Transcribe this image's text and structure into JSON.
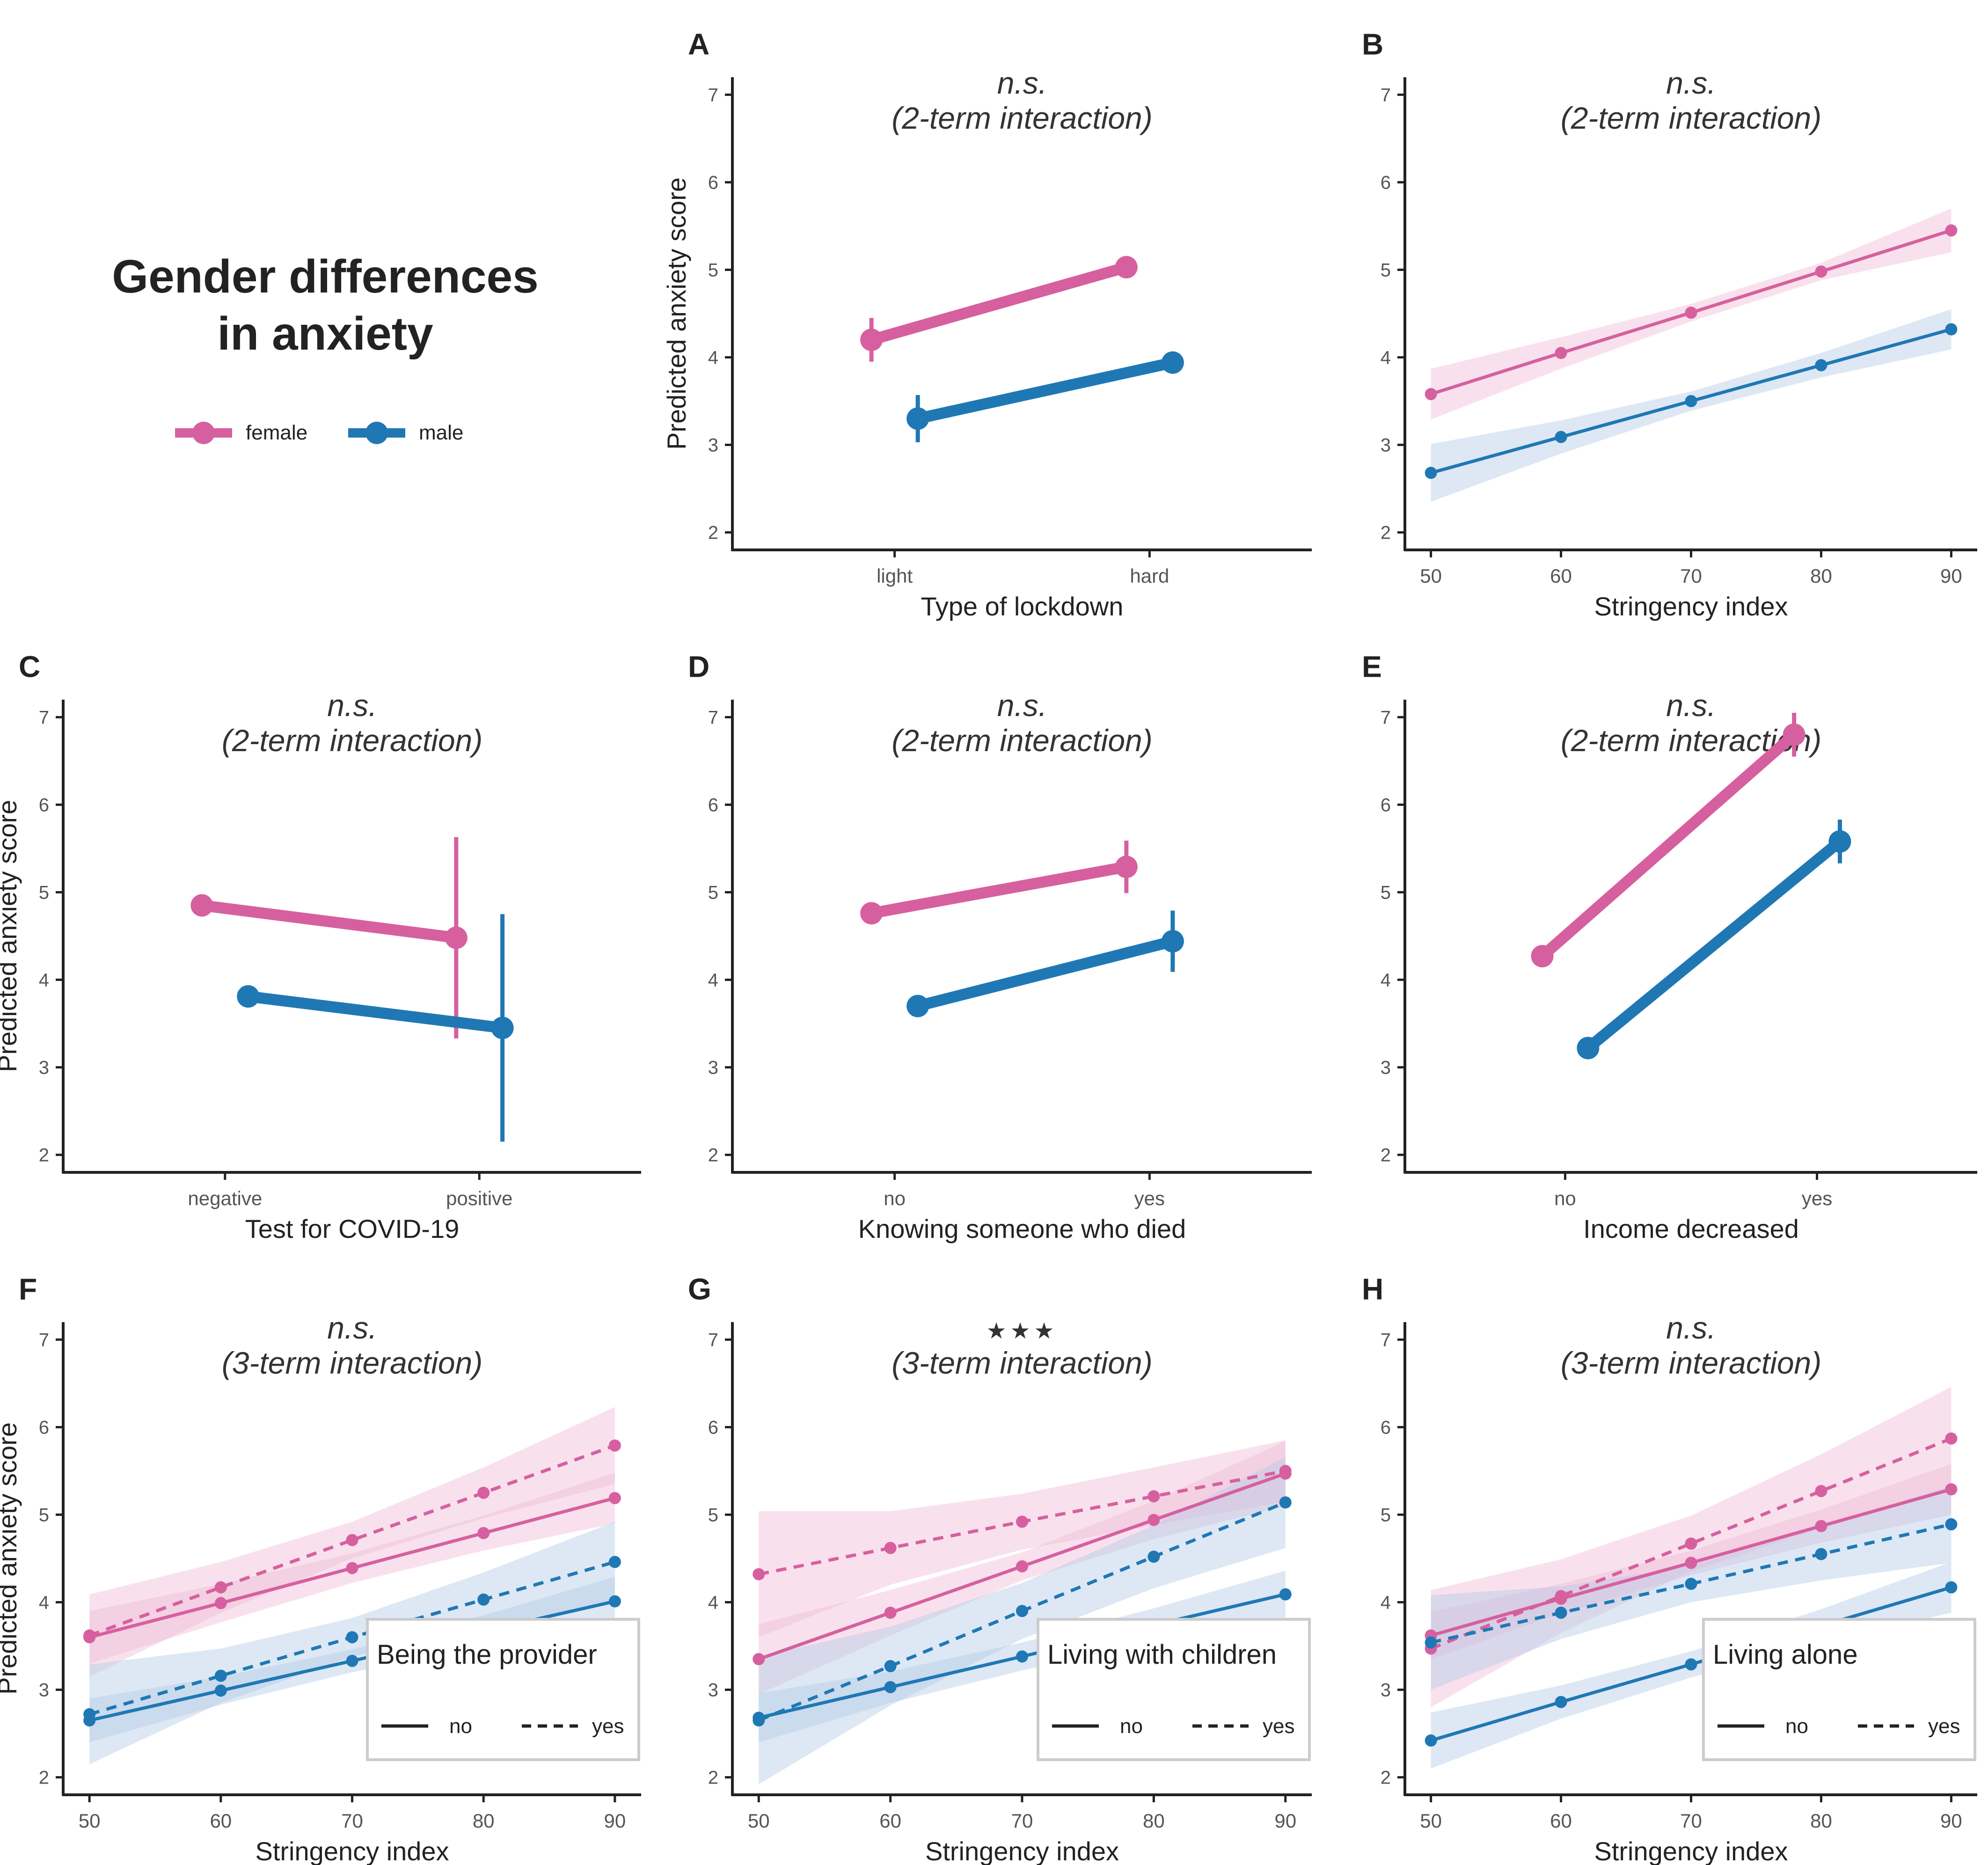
{
  "figure": {
    "title_line1": "Gender differences",
    "title_line2": "in anxiety",
    "legend": [
      {
        "label": "female",
        "color": "#d6609f"
      },
      {
        "label": "male",
        "color": "#1f78b4"
      }
    ],
    "colors": {
      "female": "#d6609f",
      "male": "#1f78b4",
      "female_band": "#f0bcd8",
      "male_band": "#b4cde6",
      "axis": "#222222",
      "tick_label": "#555555"
    }
  },
  "chart_data": [
    {
      "panel": "A",
      "type": "line",
      "subtype": "categorical-points",
      "annotation_line1": "n.s.",
      "annotation_line2": "(2-term interaction)",
      "xlabel": "Type of lockdown",
      "ylabel": "Predicted anxiety score",
      "ylim": [
        1.8,
        7.2
      ],
      "yticks": [
        2,
        3,
        4,
        5,
        6,
        7
      ],
      "categories": [
        "light",
        "hard"
      ],
      "series": [
        {
          "name": "female",
          "values": [
            4.2,
            5.03
          ],
          "ci_low": [
            3.95,
            4.98
          ],
          "ci_high": [
            4.45,
            5.08
          ]
        },
        {
          "name": "male",
          "values": [
            3.3,
            3.94
          ],
          "ci_low": [
            3.03,
            3.86
          ],
          "ci_high": [
            3.57,
            4.02
          ]
        }
      ]
    },
    {
      "panel": "B",
      "type": "line",
      "subtype": "continuous-band",
      "annotation_line1": "n.s.",
      "annotation_line2": "(2-term interaction)",
      "xlabel": "Stringency index",
      "ylabel": "",
      "ylim": [
        1.8,
        7.2
      ],
      "yticks": [
        2,
        3,
        4,
        5,
        6,
        7
      ],
      "xlim": [
        48,
        92
      ],
      "xticks": [
        50,
        60,
        70,
        80,
        90
      ],
      "x": [
        50,
        60,
        70,
        80,
        90
      ],
      "series": [
        {
          "name": "female",
          "values": [
            3.58,
            4.05,
            4.51,
            4.98,
            5.45
          ],
          "ci_low": [
            3.29,
            3.87,
            4.41,
            4.88,
            5.2
          ],
          "ci_high": [
            3.87,
            4.23,
            4.61,
            5.08,
            5.7
          ]
        },
        {
          "name": "male",
          "values": [
            2.68,
            3.09,
            3.5,
            3.91,
            4.32
          ],
          "ci_low": [
            2.35,
            2.9,
            3.39,
            3.77,
            4.09
          ],
          "ci_high": [
            3.01,
            3.28,
            3.61,
            4.05,
            4.55
          ]
        }
      ]
    },
    {
      "panel": "C",
      "type": "line",
      "subtype": "categorical-points",
      "annotation_line1": "n.s.",
      "annotation_line2": "(2-term interaction)",
      "xlabel": "Test for COVID-19",
      "ylabel": "Predicted anxiety score",
      "ylim": [
        1.8,
        7.2
      ],
      "yticks": [
        2,
        3,
        4,
        5,
        6,
        7
      ],
      "categories": [
        "negative",
        "positive"
      ],
      "series": [
        {
          "name": "female",
          "values": [
            4.85,
            4.48
          ],
          "ci_low": [
            4.8,
            3.33
          ],
          "ci_high": [
            4.9,
            5.63
          ]
        },
        {
          "name": "male",
          "values": [
            3.81,
            3.45
          ],
          "ci_low": [
            3.76,
            2.15
          ],
          "ci_high": [
            3.86,
            4.75
          ]
        }
      ]
    },
    {
      "panel": "D",
      "type": "line",
      "subtype": "categorical-points",
      "annotation_line1": "n.s.",
      "annotation_line2": "(2-term interaction)",
      "xlabel": "Knowing someone who died",
      "ylabel": "",
      "ylim": [
        1.8,
        7.2
      ],
      "yticks": [
        2,
        3,
        4,
        5,
        6,
        7
      ],
      "categories": [
        "no",
        "yes"
      ],
      "series": [
        {
          "name": "female",
          "values": [
            4.76,
            5.29
          ],
          "ci_low": [
            4.71,
            4.99
          ],
          "ci_high": [
            4.81,
            5.59
          ]
        },
        {
          "name": "male",
          "values": [
            3.7,
            4.44
          ],
          "ci_low": [
            3.64,
            4.09
          ],
          "ci_high": [
            3.76,
            4.79
          ]
        }
      ]
    },
    {
      "panel": "E",
      "type": "line",
      "subtype": "categorical-points",
      "annotation_line1": "n.s.",
      "annotation_line2": "(2-term interaction)",
      "xlabel": "Income decreased",
      "ylabel": "",
      "ylim": [
        1.8,
        7.2
      ],
      "yticks": [
        2,
        3,
        4,
        5,
        6,
        7
      ],
      "categories": [
        "no",
        "yes"
      ],
      "series": [
        {
          "name": "female",
          "values": [
            4.27,
            6.8
          ],
          "ci_low": [
            4.2,
            6.55
          ],
          "ci_high": [
            4.34,
            7.05
          ]
        },
        {
          "name": "male",
          "values": [
            3.22,
            5.58
          ],
          "ci_low": [
            3.15,
            5.33
          ],
          "ci_high": [
            3.29,
            5.83
          ]
        }
      ]
    },
    {
      "panel": "F",
      "type": "line",
      "subtype": "continuous-band-moderator",
      "annotation_line1": "n.s.",
      "annotation_line2": "(3-term interaction)",
      "xlabel": "Stringency index",
      "ylabel": "Predicted anxiety score",
      "ylim": [
        1.8,
        7.2
      ],
      "yticks": [
        2,
        3,
        4,
        5,
        6,
        7
      ],
      "xlim": [
        48,
        92
      ],
      "xticks": [
        50,
        60,
        70,
        80,
        90
      ],
      "x": [
        50,
        60,
        70,
        80,
        90
      ],
      "moderator_title": "Being the provider",
      "moderator_levels": [
        "no",
        "yes"
      ],
      "series": [
        {
          "name": "female",
          "level": "no",
          "values": [
            3.6,
            3.99,
            4.39,
            4.79,
            5.19
          ],
          "ci_low": [
            3.3,
            3.77,
            4.22,
            4.59,
            4.9
          ],
          "ci_high": [
            3.9,
            4.21,
            4.56,
            4.99,
            5.48
          ]
        },
        {
          "name": "female",
          "level": "yes",
          "values": [
            3.62,
            4.17,
            4.71,
            5.25,
            5.79
          ],
          "ci_low": [
            3.15,
            3.88,
            4.5,
            4.96,
            5.35
          ],
          "ci_high": [
            4.09,
            4.46,
            4.92,
            5.54,
            6.23
          ]
        },
        {
          "name": "male",
          "level": "no",
          "values": [
            2.65,
            2.99,
            3.33,
            3.67,
            4.01
          ],
          "ci_low": [
            2.4,
            2.83,
            3.2,
            3.49,
            3.73
          ],
          "ci_high": [
            2.9,
            3.15,
            3.46,
            3.85,
            4.29
          ]
        },
        {
          "name": "male",
          "level": "yes",
          "values": [
            2.72,
            3.16,
            3.6,
            4.03,
            4.46
          ],
          "ci_low": [
            2.15,
            2.85,
            3.38,
            3.72,
            4.0
          ],
          "ci_high": [
            3.29,
            3.47,
            3.82,
            4.34,
            4.92
          ]
        }
      ]
    },
    {
      "panel": "G",
      "type": "line",
      "subtype": "continuous-band-moderator",
      "annotation_line1": "★★★",
      "annotation_line2": "(3-term interaction)",
      "xlabel": "Stringency index",
      "ylabel": "",
      "ylim": [
        1.8,
        7.2
      ],
      "yticks": [
        2,
        3,
        4,
        5,
        6,
        7
      ],
      "xlim": [
        48,
        92
      ],
      "xticks": [
        50,
        60,
        70,
        80,
        90
      ],
      "x": [
        50,
        60,
        70,
        80,
        90
      ],
      "moderator_title": "Living with children",
      "moderator_levels": [
        "no",
        "yes"
      ],
      "series": [
        {
          "name": "female",
          "level": "no",
          "values": [
            3.35,
            3.88,
            4.41,
            4.94,
            5.47
          ],
          "ci_low": [
            2.95,
            3.62,
            4.25,
            4.72,
            5.1
          ],
          "ci_high": [
            3.75,
            4.14,
            4.57,
            5.16,
            5.84
          ]
        },
        {
          "name": "female",
          "level": "yes",
          "values": [
            4.32,
            4.62,
            4.92,
            5.21,
            5.5
          ],
          "ci_low": [
            3.6,
            4.2,
            4.6,
            4.88,
            5.15
          ],
          "ci_high": [
            5.04,
            5.04,
            5.24,
            5.54,
            5.85
          ]
        },
        {
          "name": "male",
          "level": "no",
          "values": [
            2.68,
            3.03,
            3.38,
            3.74,
            4.09
          ],
          "ci_low": [
            2.4,
            2.85,
            3.22,
            3.55,
            3.82
          ],
          "ci_high": [
            2.96,
            3.21,
            3.54,
            3.93,
            4.36
          ]
        },
        {
          "name": "male",
          "level": "yes",
          "values": [
            2.65,
            3.27,
            3.9,
            4.52,
            5.14
          ],
          "ci_low": [
            1.92,
            2.82,
            3.58,
            4.16,
            4.62
          ],
          "ci_high": [
            3.38,
            3.72,
            4.22,
            4.88,
            5.66
          ]
        }
      ]
    },
    {
      "panel": "H",
      "type": "line",
      "subtype": "continuous-band-moderator",
      "annotation_line1": "n.s.",
      "annotation_line2": "(3-term interaction)",
      "xlabel": "Stringency index",
      "ylabel": "",
      "ylim": [
        1.8,
        7.2
      ],
      "yticks": [
        2,
        3,
        4,
        5,
        6,
        7
      ],
      "xlim": [
        48,
        92
      ],
      "xticks": [
        50,
        60,
        70,
        80,
        90
      ],
      "x": [
        50,
        60,
        70,
        80,
        90
      ],
      "moderator_title": "Living alone",
      "moderator_levels": [
        "no",
        "yes"
      ],
      "series": [
        {
          "name": "female",
          "level": "no",
          "values": [
            3.62,
            4.04,
            4.45,
            4.87,
            5.29
          ],
          "ci_low": [
            3.35,
            3.87,
            4.31,
            4.68,
            5.0
          ],
          "ci_high": [
            3.89,
            4.21,
            4.59,
            5.06,
            5.58
          ]
        },
        {
          "name": "female",
          "level": "yes",
          "values": [
            3.47,
            4.07,
            4.67,
            5.27,
            5.87
          ],
          "ci_low": [
            2.8,
            3.65,
            4.35,
            4.85,
            5.28
          ],
          "ci_high": [
            4.14,
            4.49,
            4.99,
            5.69,
            6.46
          ]
        },
        {
          "name": "male",
          "level": "no",
          "values": [
            2.42,
            2.86,
            3.29,
            3.73,
            4.17
          ],
          "ci_low": [
            2.1,
            2.67,
            3.14,
            3.54,
            3.88
          ],
          "ci_high": [
            2.74,
            3.05,
            3.44,
            3.92,
            4.46
          ]
        },
        {
          "name": "male",
          "level": "yes",
          "values": [
            3.54,
            3.88,
            4.21,
            4.55,
            4.89
          ],
          "ci_low": [
            3.0,
            3.58,
            4.0,
            4.25,
            4.45
          ],
          "ci_high": [
            4.08,
            4.18,
            4.42,
            4.85,
            5.33
          ]
        }
      ]
    }
  ]
}
